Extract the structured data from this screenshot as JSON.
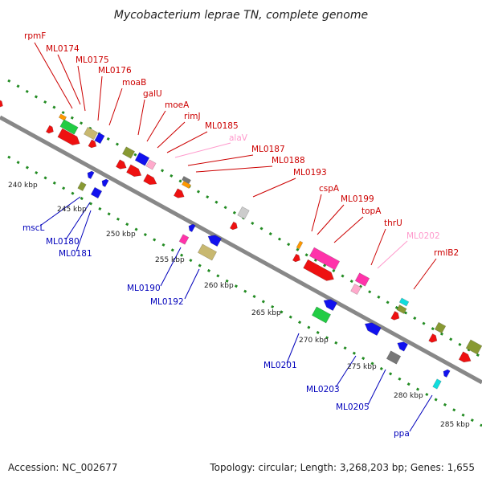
{
  "title": "Mycobacterium leprae TN, complete genome",
  "footer": {
    "accession": "Accession: NC_002677",
    "topology": "Topology: circular; Length: 3,268,203 bp; Genes: 1,655"
  },
  "colors": {
    "forward_label": "#cc0000",
    "reverse_label": "#0000bb",
    "rna_label": "#ff99cc",
    "axis": "#808080",
    "tick": "#228b22"
  },
  "ticks": [
    "240 kbp",
    "245 kbp",
    "250 kbp",
    "255 kbp",
    "260 kbp",
    "265 kbp",
    "270 kbp",
    "275 kbp",
    "280 kbp",
    "285 kbp"
  ],
  "labels_forward": [
    "rpmF",
    "ML0174",
    "ML0175",
    "ML0176",
    "moaB",
    "galU",
    "moeA",
    "rimJ",
    "ML0185",
    "alaV",
    "ML0187",
    "ML0188",
    "ML0193",
    "cspA",
    "ML0199",
    "topA",
    "thrU",
    "ML0202",
    "rmlB2"
  ],
  "labels_reverse": [
    "mscL",
    "ML0180",
    "ML0181",
    "ML0190",
    "ML0192",
    "ML0201",
    "ML0203",
    "ML0205",
    "ppa"
  ]
}
